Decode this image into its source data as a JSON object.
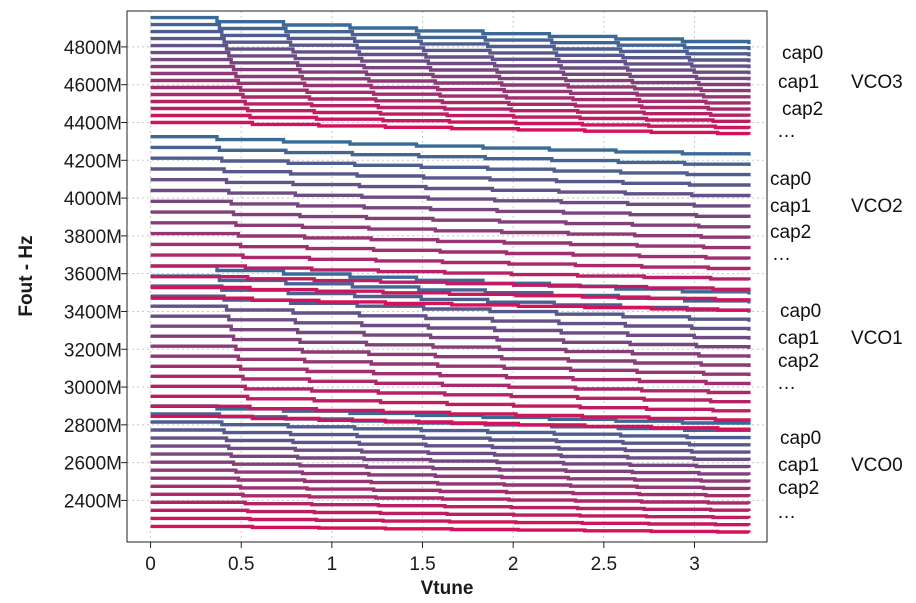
{
  "chart_data": {
    "type": "line",
    "xlabel": "Vtune",
    "ylabel": "Fout - Hz",
    "xlim": [
      -0.13,
      3.4
    ],
    "ylim": [
      2180,
      4990
    ],
    "x_ticks": [
      {
        "value": 0,
        "label": "0"
      },
      {
        "value": 0.5,
        "label": "0.5"
      },
      {
        "value": 1,
        "label": "1"
      },
      {
        "value": 1.5,
        "label": "1.5"
      },
      {
        "value": 2,
        "label": "2"
      },
      {
        "value": 2.5,
        "label": "2.5"
      },
      {
        "value": 3,
        "label": "3"
      }
    ],
    "y_ticks": [
      {
        "value": 2400,
        "label": "2400M"
      },
      {
        "value": 2600,
        "label": "2600M"
      },
      {
        "value": 2800,
        "label": "2800M"
      },
      {
        "value": 3000,
        "label": "3000M"
      },
      {
        "value": 3200,
        "label": "3200M"
      },
      {
        "value": 3400,
        "label": "3400M"
      },
      {
        "value": 3600,
        "label": "3600M"
      },
      {
        "value": 3800,
        "label": "3800M"
      },
      {
        "value": 4000,
        "label": "4000M"
      },
      {
        "value": 4200,
        "label": "4200M"
      },
      {
        "value": 4400,
        "label": "4400M"
      },
      {
        "value": 4600,
        "label": "4600M"
      },
      {
        "value": 4800,
        "label": "4800M"
      }
    ],
    "grid": true,
    "color_start": "#3a6a98",
    "color_end": "#d4115a",
    "vco_bands": [
      {
        "start": 2900,
        "end": 2800,
        "spacing_start": 42.5,
        "spacing_end": 38
      },
      {
        "start": 3640,
        "end": 3490,
        "spacing_start": 53,
        "spacing_end": 48
      },
      {
        "start": 4325,
        "end": 4225,
        "spacing_start": 57,
        "spacing_end": 55
      },
      {
        "start": 4955,
        "end": 4815,
        "spacing_start": 37,
        "spacing_end": 32
      }
    ],
    "curves_per_vco": 16,
    "annotations": [
      {
        "cap0": "cap0",
        "cap1": "cap1",
        "cap2": "cap2",
        "more": "…",
        "vco": "VCO3"
      },
      {
        "cap0": "cap0",
        "cap1": "cap1",
        "cap2": "cap2",
        "more": "…",
        "vco": "VCO2"
      },
      {
        "cap0": "cap0",
        "cap1": "cap1",
        "cap2": "cap2",
        "more": "…",
        "vco": "VCO1"
      },
      {
        "cap0": "cap0",
        "cap1": "cap1",
        "cap2": "cap2",
        "more": "…",
        "vco": "VCO0"
      }
    ]
  }
}
